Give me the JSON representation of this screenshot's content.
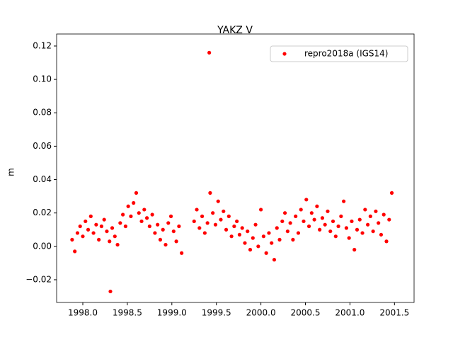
{
  "chart_data": {
    "type": "scatter",
    "title": "YAKZ V",
    "y_label": "m",
    "x": [
      1997.88,
      1997.91,
      1997.94,
      1997.97,
      1998.0,
      1998.03,
      1998.06,
      1998.09,
      1998.12,
      1998.15,
      1998.18,
      1998.21,
      1998.24,
      1998.27,
      1998.3,
      1998.31,
      1998.33,
      1998.36,
      1998.39,
      1998.42,
      1998.45,
      1998.48,
      1998.51,
      1998.54,
      1998.57,
      1998.6,
      1998.63,
      1998.66,
      1998.69,
      1998.72,
      1998.75,
      1998.78,
      1998.81,
      1998.84,
      1998.87,
      1998.9,
      1998.93,
      1998.96,
      1998.99,
      1999.02,
      1999.05,
      1999.08,
      1999.11,
      1999.25,
      1999.28,
      1999.31,
      1999.34,
      1999.37,
      1999.4,
      1999.42,
      1999.43,
      1999.46,
      1999.49,
      1999.52,
      1999.55,
      1999.58,
      1999.61,
      1999.64,
      1999.67,
      1999.7,
      1999.73,
      1999.76,
      1999.79,
      1999.82,
      1999.85,
      1999.88,
      1999.91,
      1999.94,
      1999.97,
      2000.0,
      2000.03,
      2000.06,
      2000.09,
      2000.12,
      2000.15,
      2000.18,
      2000.21,
      2000.24,
      2000.27,
      2000.3,
      2000.33,
      2000.36,
      2000.39,
      2000.42,
      2000.45,
      2000.48,
      2000.51,
      2000.54,
      2000.57,
      2000.6,
      2000.63,
      2000.66,
      2000.69,
      2000.72,
      2000.75,
      2000.78,
      2000.81,
      2000.84,
      2000.87,
      2000.9,
      2000.93,
      2000.96,
      2000.99,
      2001.02,
      2001.05,
      2001.08,
      2001.11,
      2001.14,
      2001.17,
      2001.2,
      2001.23,
      2001.26,
      2001.29,
      2001.32,
      2001.35,
      2001.38,
      2001.41,
      2001.44,
      2001.47
    ],
    "series": [
      {
        "name": "repro2018a (IGS14)",
        "color": "#ff0000",
        "values": [
          0.004,
          -0.003,
          0.008,
          0.012,
          0.006,
          0.015,
          0.01,
          0.018,
          0.008,
          0.013,
          0.004,
          0.012,
          0.016,
          0.009,
          0.003,
          -0.027,
          0.011,
          0.006,
          0.001,
          0.014,
          0.019,
          0.012,
          0.024,
          0.018,
          0.026,
          0.032,
          0.02,
          0.015,
          0.022,
          0.017,
          0.012,
          0.019,
          0.008,
          0.013,
          0.004,
          0.01,
          0.001,
          0.014,
          0.018,
          0.009,
          0.003,
          0.012,
          -0.004,
          0.015,
          0.022,
          0.011,
          0.018,
          0.008,
          0.014,
          0.116,
          0.032,
          0.02,
          0.013,
          0.027,
          0.016,
          0.021,
          0.01,
          0.018,
          0.006,
          0.012,
          0.015,
          0.007,
          0.011,
          0.002,
          0.009,
          -0.002,
          0.005,
          0.013,
          0.0,
          0.022,
          0.006,
          -0.004,
          0.008,
          0.002,
          -0.008,
          0.011,
          0.004,
          0.015,
          0.02,
          0.009,
          0.014,
          0.004,
          0.018,
          0.008,
          0.022,
          0.015,
          0.028,
          0.012,
          0.02,
          0.016,
          0.024,
          0.01,
          0.017,
          0.013,
          0.021,
          0.009,
          0.015,
          0.006,
          0.012,
          0.018,
          0.027,
          0.011,
          0.005,
          0.015,
          -0.002,
          0.01,
          0.016,
          0.008,
          0.022,
          0.013,
          0.018,
          0.009,
          0.021,
          0.014,
          0.007,
          0.019,
          0.003,
          0.016,
          0.032
        ]
      }
    ],
    "xlim": [
      1997.706,
      2001.72
    ],
    "ylim": [
      -0.0336,
      0.1272
    ],
    "xticks": [
      {
        "value": 1998,
        "label": "1998.0"
      },
      1998.5,
      {
        "value": 1999,
        "label": "1999.0"
      },
      1999.5,
      {
        "value": 2000,
        "label": "2000.0"
      },
      2000.5,
      {
        "value": 2001,
        "label": "2001.0"
      },
      2001.5
    ],
    "yticks": [
      {
        "value": -0.02,
        "label": "−0.02"
      },
      {
        "value": 0,
        "label": "0.00"
      },
      0.02,
      0.04,
      0.06,
      0.08,
      {
        "value": 0.1,
        "label": "0.10"
      },
      0.12
    ],
    "legend": "upper right"
  }
}
